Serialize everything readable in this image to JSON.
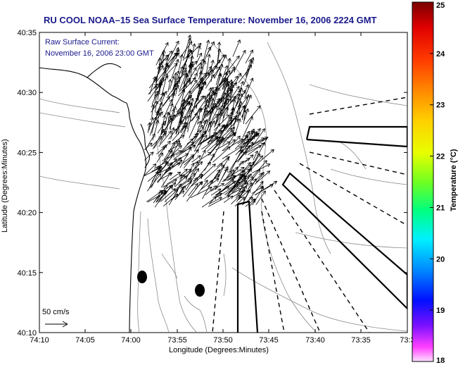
{
  "title": "RU COOL  NOAA–15  Sea Surface Temperature:  November 16, 2006 2224 GMT",
  "current_label": {
    "line1": "Raw Surface Current:",
    "line2": "November 16, 2006 23:00 GMT"
  },
  "scale_label": "50 cm/s",
  "x_axis": {
    "label": "Longitude (Degrees:Minutes)",
    "ticks": [
      "74:10",
      "74:05",
      "74:00",
      "73:55",
      "73:50",
      "73:45",
      "73:40",
      "73:35",
      "73:3"
    ]
  },
  "y_axis": {
    "label": "Latitude (Degrees:Minutes)",
    "ticks": [
      "40:35",
      "40:30",
      "40:25",
      "40:20",
      "40:15",
      "40:10"
    ]
  },
  "colorbar": {
    "label": "Temperature (°C)",
    "ticks": [
      "25",
      "24",
      "23",
      "22",
      "21",
      "20",
      "19",
      "18"
    ],
    "range": [
      18,
      25
    ]
  }
}
